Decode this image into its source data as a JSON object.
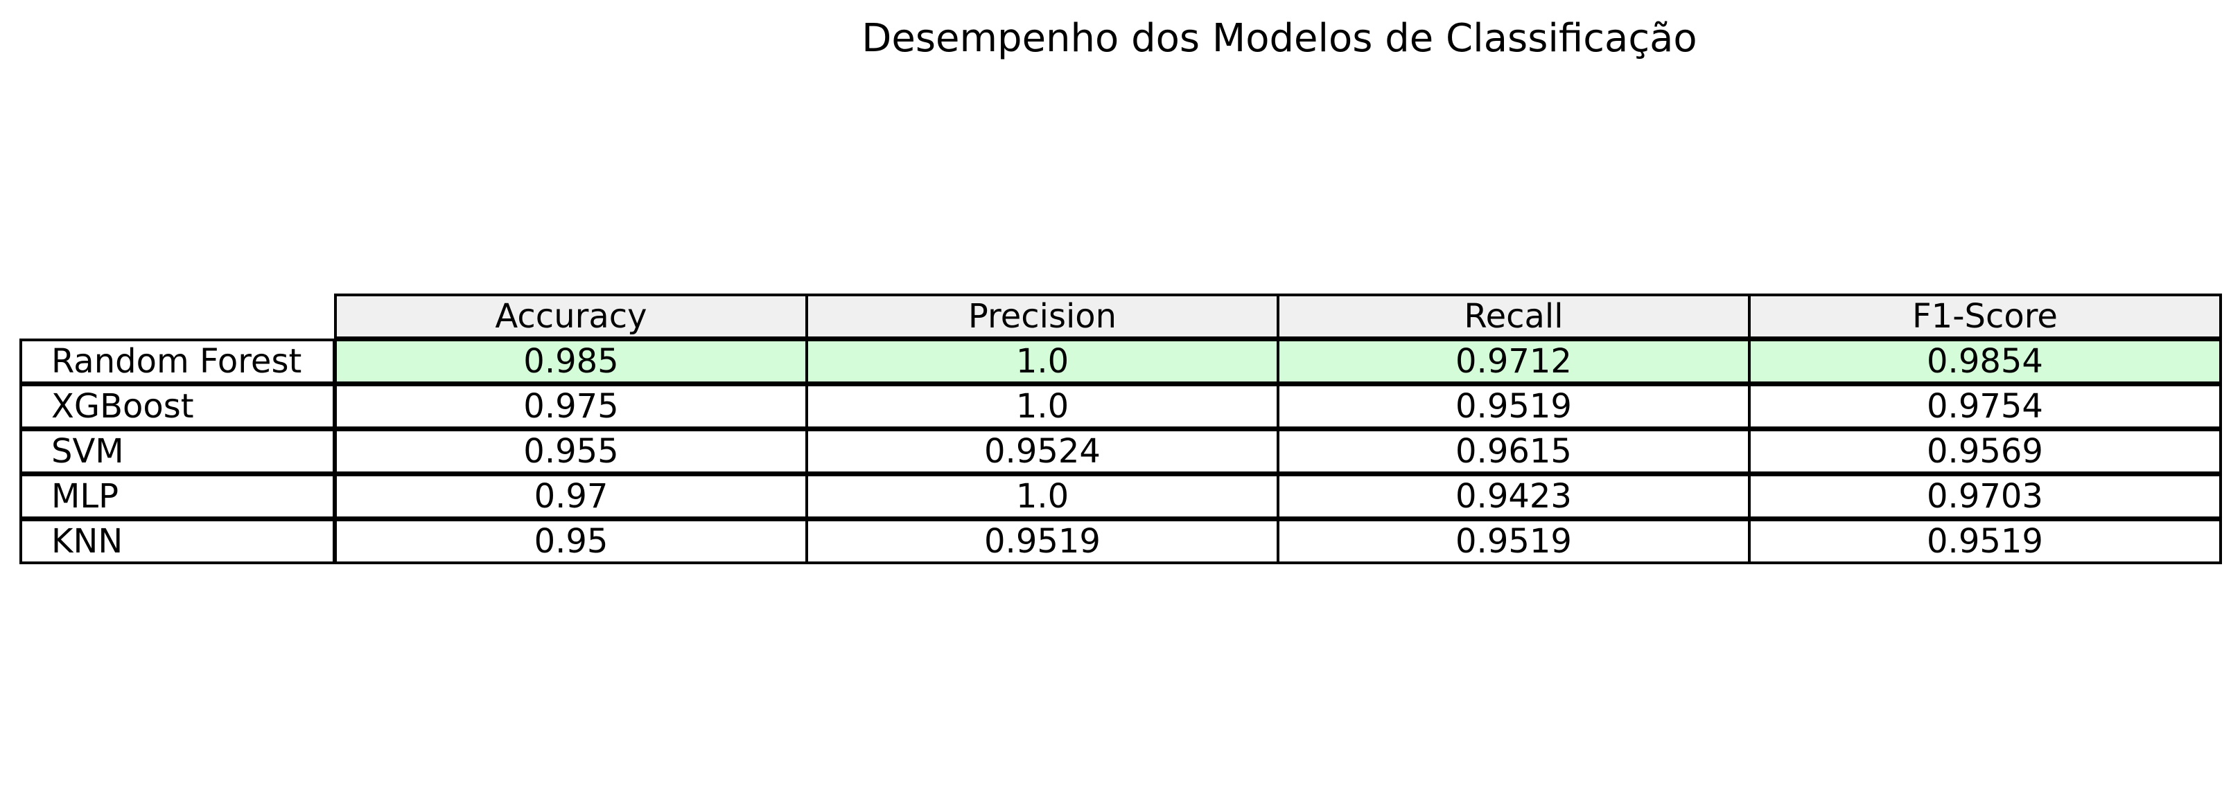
{
  "chart_data": {
    "type": "table",
    "title": "Desempenho dos Modelos de Classificação",
    "columns": [
      "Accuracy",
      "Precision",
      "Recall",
      "F1-Score"
    ],
    "rows": [
      {
        "label": "Random Forest",
        "values": [
          "0.985",
          "1.0",
          "0.9712",
          "0.9854"
        ],
        "highlighted": true
      },
      {
        "label": "XGBoost",
        "values": [
          "0.975",
          "1.0",
          "0.9519",
          "0.9754"
        ],
        "highlighted": false
      },
      {
        "label": "SVM",
        "values": [
          "0.955",
          "0.9524",
          "0.9615",
          "0.9569"
        ],
        "highlighted": false
      },
      {
        "label": "MLP",
        "values": [
          "0.97",
          "1.0",
          "0.9423",
          "0.9703"
        ],
        "highlighted": false
      },
      {
        "label": "KNN",
        "values": [
          "0.95",
          "0.9519",
          "0.9519",
          "0.9519"
        ],
        "highlighted": false
      }
    ]
  },
  "colors": {
    "header_background": "#f0f0f0",
    "highlight_background": "#d4fcd8",
    "cell_background": "#ffffff",
    "border": "#000000",
    "text": "#000000"
  }
}
